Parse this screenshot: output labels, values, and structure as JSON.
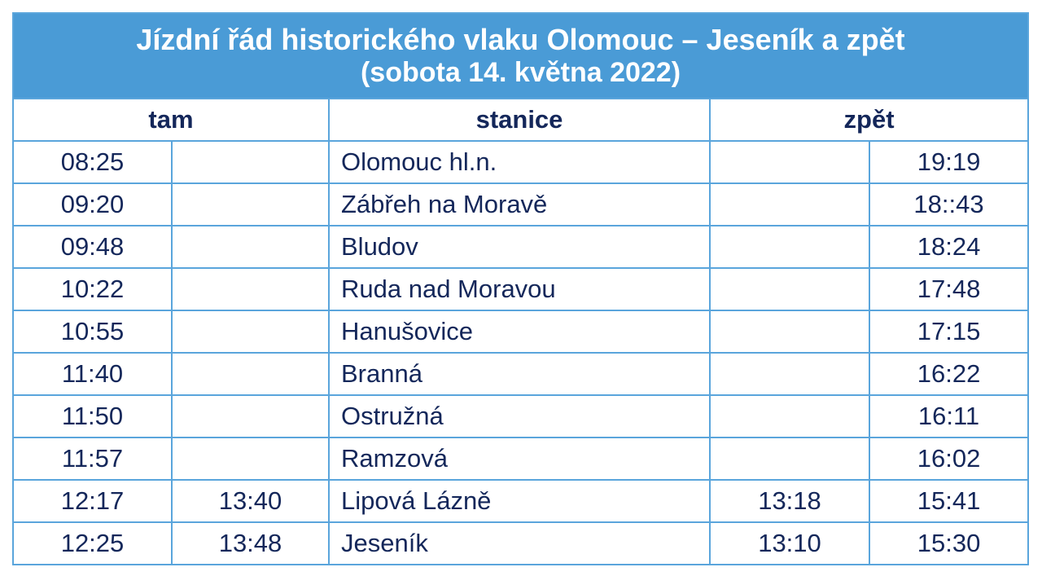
{
  "header": {
    "title": "Jízdní řád historického vlaku Olomouc – Jeseník a zpět",
    "subtitle": "(sobota 14. května 2022)"
  },
  "table": {
    "columns": {
      "tam": "tam",
      "stanice": "stanice",
      "zpet": "zpět"
    },
    "rows": [
      {
        "tam_1": "08:25",
        "stanice": "Olomouc hl.n.",
        "zpet_2": "19:19"
      },
      {
        "tam_1": "09:20",
        "stanice": "Zábřeh na Moravě",
        "zpet_2": "18::43"
      },
      {
        "tam_1": "09:48",
        "stanice": "Bludov",
        "zpet_2": "18:24"
      },
      {
        "tam_1": "10:22",
        "stanice": "Ruda nad Moravou",
        "zpet_2": "17:48"
      },
      {
        "tam_1": "10:55",
        "stanice": "Hanušovice",
        "zpet_2": "17:15"
      },
      {
        "tam_1": "11:40",
        "stanice": "Branná",
        "zpet_2": "16:22"
      },
      {
        "tam_1": "11:50",
        "stanice": "Ostružná",
        "zpet_2": "16:11"
      },
      {
        "tam_1": "11:57",
        "stanice": "Ramzová",
        "zpet_2": "16:02"
      },
      {
        "tam_1": "12:17",
        "tam_2": "13:40",
        "stanice": "Lipová Lázně",
        "zpet_1": "13:18",
        "zpet_2": "15:41"
      },
      {
        "tam_1": "12:25",
        "tam_2": "13:48",
        "stanice": "Jeseník",
        "zpet_1": "13:10",
        "zpet_2": "15:30"
      }
    ]
  }
}
